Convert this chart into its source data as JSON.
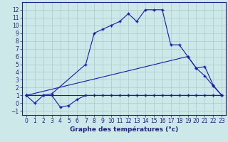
{
  "xlabel": "Graphe des températures (°c)",
  "x_ticks": [
    0,
    1,
    2,
    3,
    4,
    5,
    6,
    7,
    8,
    9,
    10,
    11,
    12,
    13,
    14,
    15,
    16,
    17,
    18,
    19,
    20,
    21,
    22,
    23
  ],
  "ylim": [
    -1.5,
    13
  ],
  "xlim": [
    -0.5,
    23.5
  ],
  "yticks": [
    -1,
    0,
    1,
    2,
    3,
    4,
    5,
    6,
    7,
    8,
    9,
    10,
    11,
    12
  ],
  "line_wavy": {
    "x": [
      0,
      1,
      2,
      3,
      4,
      5,
      6,
      7,
      8,
      9,
      10,
      11,
      12,
      13,
      14,
      15,
      16,
      17,
      18,
      19,
      20,
      21,
      22,
      23
    ],
    "y": [
      1,
      0,
      1,
      1,
      -0.5,
      -0.3,
      0.5,
      1,
      1,
      1,
      1,
      1,
      1,
      1,
      1,
      1,
      1,
      1,
      1,
      1,
      1,
      1,
      1,
      1
    ]
  },
  "line_main": {
    "x": [
      0,
      2,
      3,
      7,
      8,
      9,
      10,
      11,
      12,
      13,
      14,
      15,
      16,
      17,
      18,
      19,
      20,
      21,
      22,
      23
    ],
    "y": [
      1,
      1,
      1.2,
      5,
      9,
      9.5,
      10,
      10.5,
      11.5,
      10.5,
      12,
      12,
      12,
      7.5,
      7.5,
      6,
      4.5,
      3.5,
      2.2,
      1
    ]
  },
  "line_flat": {
    "x": [
      0,
      23
    ],
    "y": [
      1,
      1
    ]
  },
  "line_diag": {
    "x": [
      0,
      19,
      20,
      21,
      22,
      23
    ],
    "y": [
      1,
      6,
      4.5,
      4.7,
      2.3,
      1
    ]
  },
  "line_color": "#1a1aaa",
  "marker": "+",
  "bg_color": "#cce8e8",
  "grid_color": "#aacccc",
  "axis_color": "#222288",
  "label_fontsize": 6.5,
  "tick_fontsize": 5.5
}
